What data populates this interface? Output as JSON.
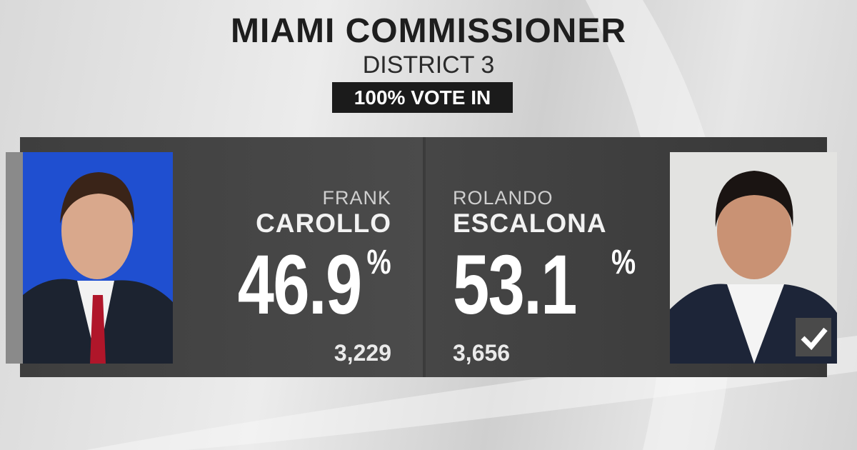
{
  "header": {
    "title": "MIAMI COMMISSIONER",
    "subtitle": "DISTRICT 3",
    "status": "100% VOTE IN"
  },
  "candidates": [
    {
      "first_name": "FRANK",
      "last_name": "CAROLLO",
      "percent": "46.9",
      "percent_unit": "%",
      "votes": "3,229"
    },
    {
      "first_name": "ROLANDO",
      "last_name": "ESCALONA",
      "percent": "53.1",
      "percent_unit": "%",
      "votes": "3,656"
    }
  ]
}
